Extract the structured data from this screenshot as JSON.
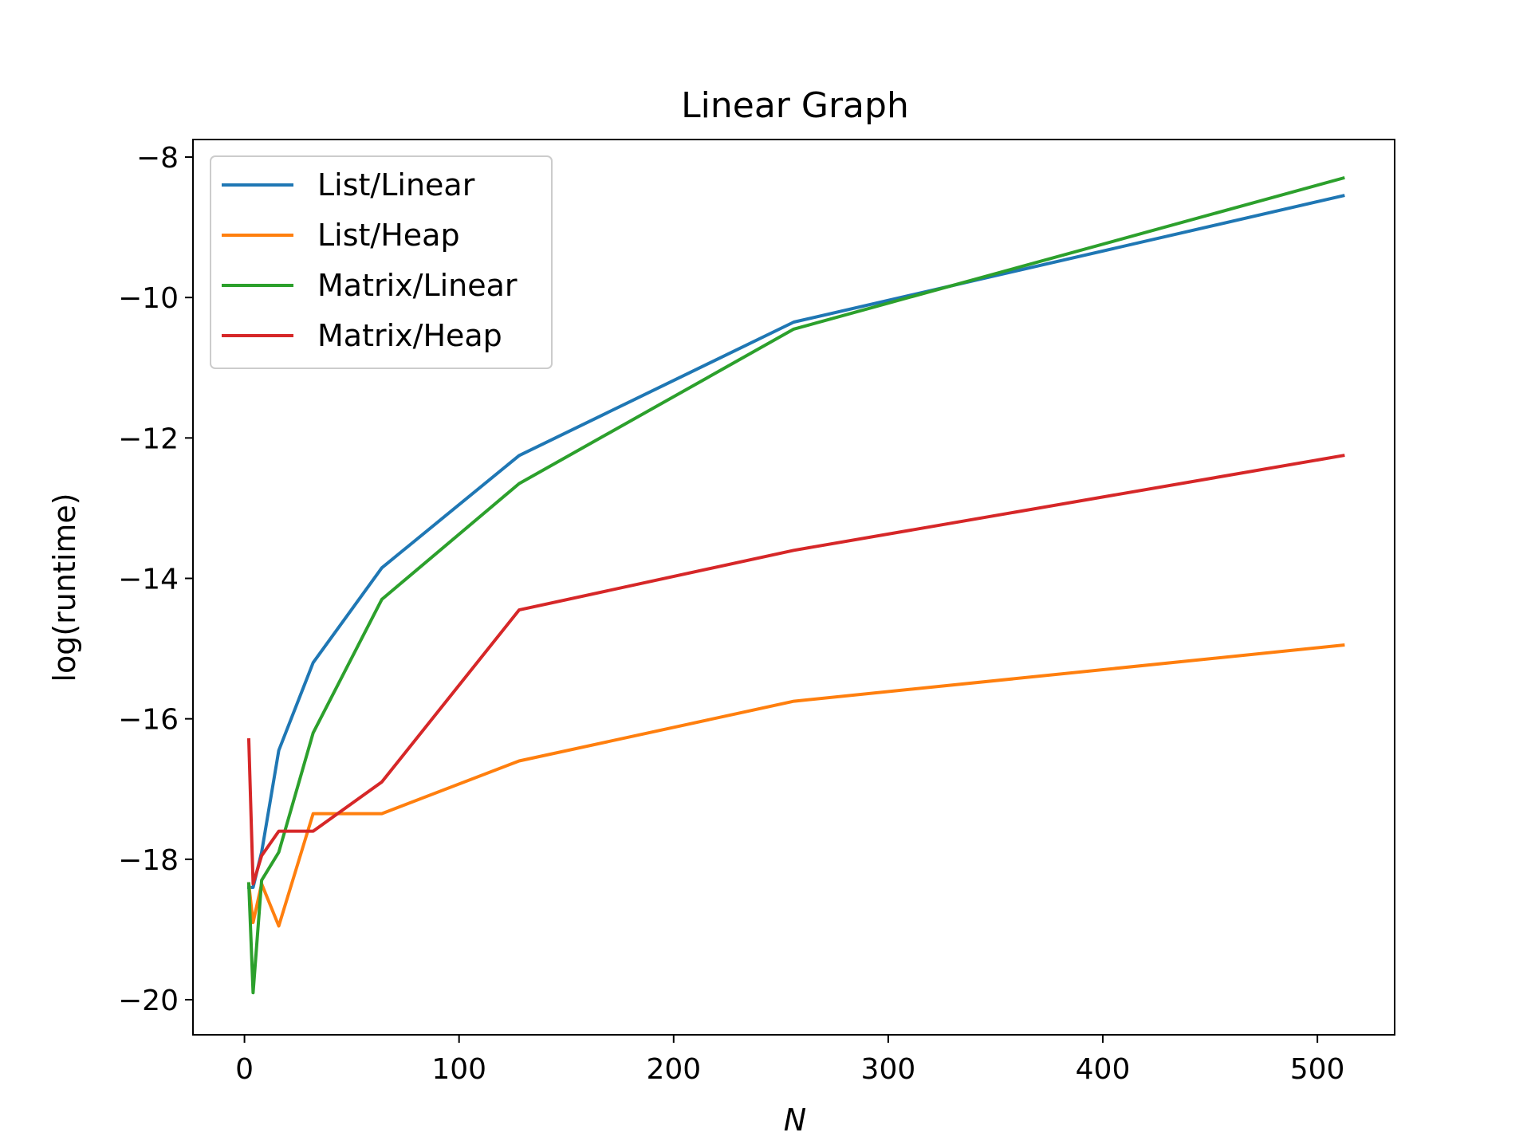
{
  "colors": {
    "background": "#ffffff",
    "axes": "#000000",
    "legend_frame": "#cccccc"
  },
  "chart_data": {
    "type": "line",
    "title": "Linear Graph",
    "xlabel": "N",
    "ylabel": "log(runtime)",
    "xlim": [
      -24,
      536
    ],
    "ylim": [
      -20.5,
      -7.75
    ],
    "xticks": [
      0,
      100,
      200,
      300,
      400,
      500
    ],
    "xtick_labels": [
      "0",
      "100",
      "200",
      "300",
      "400",
      "500"
    ],
    "yticks": [
      -20,
      -18,
      -16,
      -14,
      -12,
      -10,
      -8
    ],
    "ytick_labels": [
      "−20",
      "−18",
      "−16",
      "−14",
      "−12",
      "−10",
      "−8"
    ],
    "grid": false,
    "legend_position": "upper-left",
    "x": [
      2,
      4,
      8,
      16,
      32,
      64,
      128,
      256,
      512
    ],
    "series": [
      {
        "name": "List/Linear",
        "color": "#1f77b4",
        "values": [
          -18.4,
          -18.4,
          -17.9,
          -16.45,
          -15.2,
          -13.85,
          -12.25,
          -10.35,
          -8.55
        ]
      },
      {
        "name": "List/Heap",
        "color": "#ff7f0e",
        "values": [
          -18.35,
          -18.9,
          -18.35,
          -18.95,
          -17.35,
          -17.35,
          -16.6,
          -15.75,
          -14.95
        ]
      },
      {
        "name": "Matrix/Linear",
        "color": "#2ca02c",
        "values": [
          -18.35,
          -19.9,
          -18.3,
          -17.9,
          -16.2,
          -14.3,
          -12.65,
          -10.45,
          -8.3
        ]
      },
      {
        "name": "Matrix/Heap",
        "color": "#d62728",
        "values": [
          -16.3,
          -18.35,
          -17.95,
          -17.6,
          -17.6,
          -16.9,
          -14.45,
          -13.6,
          -12.25
        ]
      }
    ]
  }
}
